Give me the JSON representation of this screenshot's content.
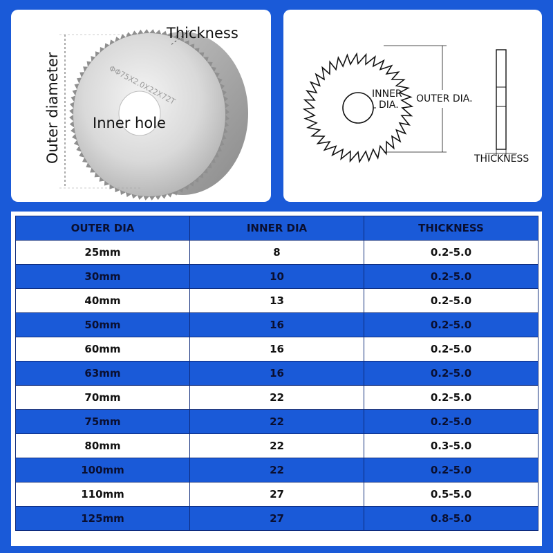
{
  "photo_panel": {
    "thickness_label": "Thickness",
    "inner_hole_label": "Inner hole",
    "outer_diameter_label": "Outer diameter",
    "blade_marking": "ΦΦ75X2.0X22X72T"
  },
  "diagram_panel": {
    "inner_dia_label_line1": "INNER",
    "inner_dia_label_line2": "DIA.",
    "outer_dia_label": "OUTER DIA.",
    "thickness_label": "THICKNESS"
  },
  "spec_table": {
    "headers": [
      "OUTER DIA",
      "INNER DIA",
      "THICKNESS"
    ],
    "rows": [
      [
        "25mm",
        "8",
        "0.2-5.0"
      ],
      [
        "30mm",
        "10",
        "0.2-5.0"
      ],
      [
        "40mm",
        "13",
        "0.2-5.0"
      ],
      [
        "50mm",
        "16",
        "0.2-5.0"
      ],
      [
        "60mm",
        "16",
        "0.2-5.0"
      ],
      [
        "63mm",
        "16",
        "0.2-5.0"
      ],
      [
        "70mm",
        "22",
        "0.2-5.0"
      ],
      [
        "75mm",
        "22",
        "0.2-5.0"
      ],
      [
        "80mm",
        "22",
        "0.3-5.0"
      ],
      [
        "100mm",
        "22",
        "0.2-5.0"
      ],
      [
        "110mm",
        "27",
        "0.5-5.0"
      ],
      [
        "125mm",
        "27",
        "0.8-5.0"
      ]
    ]
  },
  "colors": {
    "accent_blue": "#1a5ad8",
    "border_navy": "#0d2a7a"
  }
}
